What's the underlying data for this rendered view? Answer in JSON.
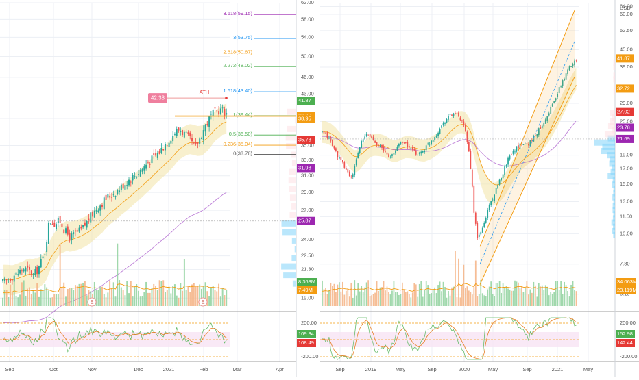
{
  "colors": {
    "up": "#26a69a",
    "down": "#ef5350",
    "vol_up": "#8fd19e",
    "vol_down": "#f4b183",
    "band": "#f3e3a6",
    "orange": "#f39c12",
    "purple": "#9c27b0",
    "blue": "#2196f3",
    "green": "#4caf50",
    "pink": "#e91e63",
    "red": "#e53935",
    "sky": "#81d4fa",
    "grid": "#eceff4",
    "axis_text": "#555555"
  },
  "chart_data": [
    {
      "type": "candlestick",
      "panel": "left",
      "x_labels": [
        "Sep",
        "Oct",
        "Nov",
        "Dec",
        "2021",
        "Feb",
        "Mar",
        "Apr"
      ],
      "price_axis": [
        "62.00",
        "58.00",
        "54.00",
        "50.00",
        "46.00",
        "43.00",
        "39.00",
        "35.00",
        "33.00",
        "31.00",
        "29.00",
        "27.00",
        "24.00",
        "22.50",
        "21.30",
        "19.00"
      ],
      "ylim": [
        18.5,
        62
      ],
      "log_scale": true,
      "grid": true,
      "close_path": [
        20.2,
        20.4,
        20.8,
        21.0,
        21.4,
        21.2,
        20.8,
        21.6,
        22.6,
        26.0,
        25.6,
        25.9,
        24.8,
        24.2,
        24.6,
        24.9,
        25.6,
        26.4,
        27.2,
        27.8,
        28.4,
        28.8,
        29.2,
        29.8,
        30.4,
        30.9,
        31.4,
        32.0,
        32.8,
        33.3,
        34.0,
        35.0,
        35.9,
        36.8,
        37.4,
        36.6,
        35.8,
        34.6,
        36.2,
        38.0,
        39.4,
        40.1,
        40.4,
        39.8
      ],
      "fib_levels": [
        {
          "label": "3.618(59.15)",
          "value": 59.15,
          "color": "#9c27b0"
        },
        {
          "label": "3(53.75)",
          "value": 53.75,
          "color": "#2196f3"
        },
        {
          "label": "2.618(50.67)",
          "value": 50.67,
          "color": "#f39c12"
        },
        {
          "label": "2.272(48.02)",
          "value": 48.02,
          "color": "#4caf50"
        },
        {
          "label": "1.618(43.40)",
          "value": 43.4,
          "color": "#2196f3"
        },
        {
          "label": "1(39.44)",
          "value": 39.44,
          "color": "#4caf50"
        },
        {
          "label": "0.5(36.50)",
          "value": 36.5,
          "color": "#4caf50"
        },
        {
          "label": "0.236(35.04)",
          "value": 35.04,
          "color": "#f39c12"
        },
        {
          "label": "0(33.78)",
          "value": 33.78,
          "color": "#555555"
        }
      ],
      "ath": {
        "label": "ATH",
        "value": 42.33,
        "value_label": "42.33"
      },
      "price_tags": [
        {
          "label": "41.87",
          "value": 41.87,
          "color": "#4caf50"
        },
        {
          "label": "39.37",
          "value": 39.37,
          "color": "#f39c12"
        },
        {
          "label": "38.95",
          "value": 38.95,
          "color": "#f39c12"
        },
        {
          "label": "35.78",
          "value": 35.78,
          "color": "#e53935"
        },
        {
          "label": "31.98",
          "value": 31.98,
          "color": "#9c27b0"
        },
        {
          "label": "25.87",
          "value": 25.87,
          "color": "#9c27b0"
        }
      ],
      "volume_tags": [
        {
          "label": "8.363M",
          "color": "#4caf50"
        },
        {
          "label": "7.49M",
          "color": "#f39c12"
        }
      ],
      "earnings_marker": "E",
      "oscillator": {
        "axis": [
          "200.00",
          "-200.00"
        ],
        "tags": [
          {
            "label": "109.34",
            "color": "#4caf50"
          },
          {
            "label": "108.49",
            "color": "#e53935"
          }
        ]
      }
    },
    {
      "type": "candlestick",
      "panel": "right",
      "currency": "USD",
      "x_labels": [
        "Sep",
        "2019",
        "May",
        "Sep",
        "2020",
        "May",
        "Sep",
        "2021",
        "May"
      ],
      "price_axis": [
        "64.00",
        "60.00",
        "52.50",
        "45.00",
        "39.00",
        "29.00",
        "25.00",
        "19.00",
        "17.00",
        "15.00",
        "13.00",
        "11.50",
        "10.00",
        "7.80",
        "6.10"
      ],
      "ylim": [
        5.6,
        66
      ],
      "log_scale": true,
      "grid": true,
      "close_path": [
        22.8,
        22.4,
        21.6,
        20.2,
        19.0,
        18.0,
        17.2,
        16.2,
        15.8,
        18.5,
        20.6,
        21.8,
        22.6,
        21.9,
        21.2,
        20.6,
        19.8,
        19.2,
        18.6,
        19.4,
        20.6,
        21.4,
        20.8,
        20.2,
        19.6,
        19.2,
        19.4,
        20.0,
        20.8,
        21.6,
        22.4,
        23.6,
        24.8,
        25.8,
        26.4,
        26.8,
        25.8,
        24.6,
        22.4,
        18.0,
        11.8,
        9.6,
        10.2,
        11.2,
        12.6,
        13.4,
        14.4,
        15.6,
        17.0,
        18.4,
        19.4,
        20.0,
        20.6,
        21.2,
        20.6,
        21.4,
        22.2,
        23.2,
        24.4,
        25.8,
        27.4,
        29.2,
        31.4,
        33.8,
        36.0,
        38.4,
        40.4,
        41.8
      ],
      "price_tags": [
        {
          "label": "41.87",
          "value": 41.87,
          "color": "#f39c12"
        },
        {
          "label": "32.72",
          "value": 32.72,
          "color": "#f39c12"
        },
        {
          "label": "27.02",
          "value": 27.02,
          "color": "#e53935"
        },
        {
          "label": "23.78",
          "value": 23.78,
          "color": "#9c27b0"
        },
        {
          "label": "21.69",
          "value": 21.69,
          "color": "#9c27b0"
        }
      ],
      "volume_tags": [
        {
          "label": "34.063M",
          "color": "#f39c12"
        },
        {
          "label": "23.119M",
          "color": "#f39c12"
        }
      ],
      "oscillator": {
        "axis": [
          "200.00",
          "-200.00"
        ],
        "tags": [
          {
            "label": "152.98",
            "color": "#4caf50"
          },
          {
            "label": "142.44",
            "color": "#e53935"
          }
        ]
      }
    }
  ]
}
